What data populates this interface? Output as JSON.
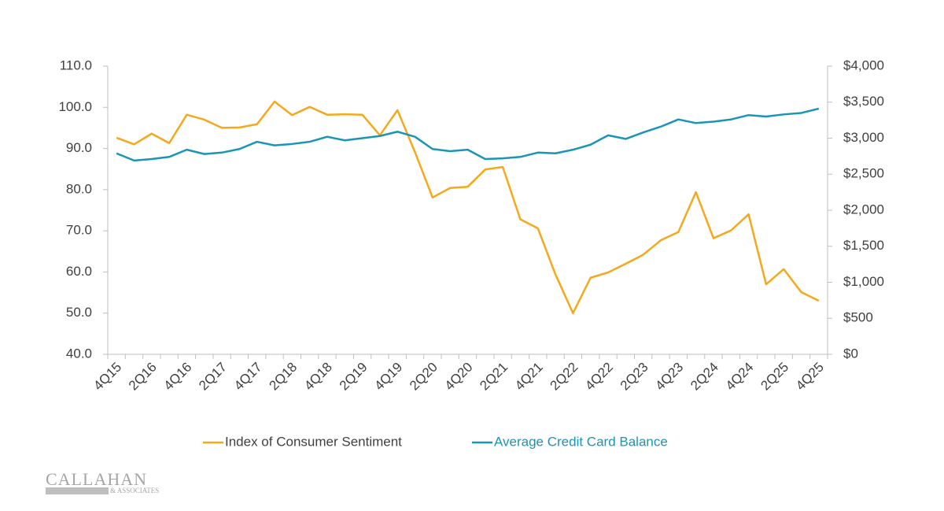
{
  "chart_data": {
    "type": "line",
    "categories": [
      "4Q15",
      null,
      "2Q16",
      null,
      "4Q16",
      null,
      "2Q17",
      null,
      "4Q17",
      null,
      "2Q18",
      null,
      "4Q18",
      null,
      "2Q19",
      null,
      "4Q19",
      null,
      "2Q20",
      null,
      "4Q20",
      null,
      "2Q21",
      null,
      "4Q21",
      null,
      "2Q22",
      null,
      "4Q22",
      null,
      "2Q23",
      null,
      "4Q23",
      null,
      "2Q24",
      null,
      "4Q24",
      null,
      "2Q25",
      null,
      "4Q25"
    ],
    "series": [
      {
        "name": "Index of Consumer Sentiment",
        "color": "#f5a81c",
        "values": [
          92.6,
          91.0,
          93.6,
          91.3,
          98.2,
          97.0,
          95.0,
          95.1,
          95.9,
          101.4,
          98.1,
          100.1,
          98.2,
          98.3,
          98.2,
          93.2,
          99.3,
          89.1,
          78.1,
          80.4,
          80.7,
          84.9,
          85.5,
          72.8,
          70.6,
          59.4,
          50.0,
          58.6,
          59.9,
          62.0,
          64.2,
          67.7,
          69.7,
          79.4,
          68.2,
          70.1,
          74.0,
          57.0,
          60.7,
          55.1,
          53.0
        ]
      },
      {
        "name": "Average Credit Card Balance",
        "color": "#1b95b5",
        "axis": "y2",
        "values": [
          2790,
          2690,
          2710,
          2740,
          2840,
          2780,
          2800,
          2850,
          2950,
          2900,
          2920,
          2950,
          3020,
          2970,
          3000,
          3030,
          3090,
          3020,
          2850,
          2820,
          2840,
          2710,
          2720,
          2740,
          2800,
          2790,
          2840,
          2910,
          3040,
          2990,
          3080,
          3160,
          3260,
          3210,
          3230,
          3260,
          3320,
          3300,
          3330,
          3350,
          3410
        ]
      }
    ],
    "ylim": [
      40,
      110
    ],
    "yticks": [
      {
        "value": 40,
        "label": "40.0"
      },
      {
        "value": 50,
        "label": "50.0"
      },
      {
        "value": 60,
        "label": "60.0"
      },
      {
        "value": 70,
        "label": "70.0"
      },
      {
        "value": 80,
        "label": "80.0"
      },
      {
        "value": 90,
        "label": "90.0"
      },
      {
        "value": 100,
        "label": "100.0"
      },
      {
        "value": 110,
        "label": "110.0"
      }
    ],
    "y2lim": [
      0,
      4000
    ],
    "y2ticks": [
      {
        "value": 0,
        "label": "$0"
      },
      {
        "value": 500,
        "label": "$500"
      },
      {
        "value": 1000,
        "label": "$1,000"
      },
      {
        "value": 1500,
        "label": "$1,500"
      },
      {
        "value": 2000,
        "label": "$2,000"
      },
      {
        "value": 2500,
        "label": "$2,500"
      },
      {
        "value": 3000,
        "label": "$3,000"
      },
      {
        "value": 3500,
        "label": "$3,500"
      },
      {
        "value": 4000,
        "label": "$4,000"
      }
    ],
    "grid": false,
    "legend": "bottom"
  },
  "logo": {
    "name": "CALLAHAN",
    "subtitle": "& ASSOCIATES"
  }
}
